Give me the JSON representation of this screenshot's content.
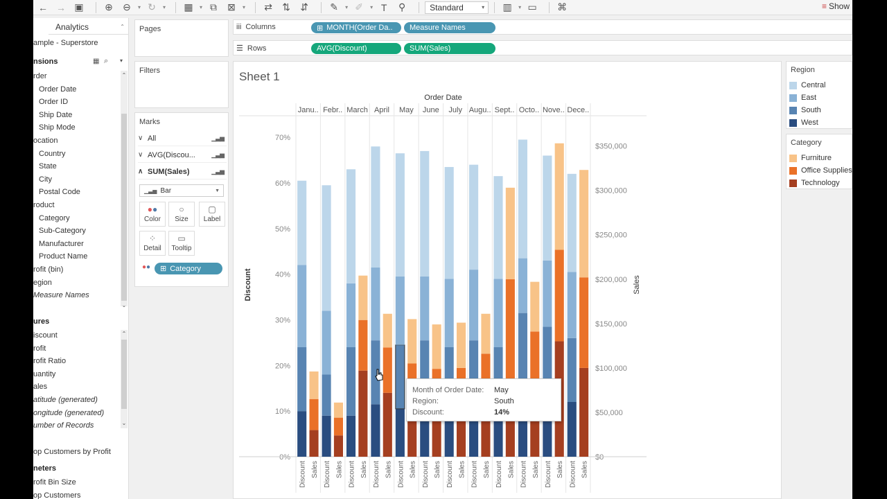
{
  "toolbar": {
    "standard_label": "Standard",
    "show_me_label": "Show"
  },
  "datapane": {
    "analytics_tab": "Analytics",
    "datasource": "ample - Superstore",
    "dimensions_header": "nsions",
    "dimensions": [
      {
        "label": "rder",
        "indent": 0
      },
      {
        "label": "Order Date",
        "indent": 1
      },
      {
        "label": "Order ID",
        "indent": 1
      },
      {
        "label": "Ship Date",
        "indent": 1
      },
      {
        "label": "Ship Mode",
        "indent": 1
      },
      {
        "label": "ocation",
        "indent": 0
      },
      {
        "label": "Country",
        "indent": 1
      },
      {
        "label": "State",
        "indent": 1
      },
      {
        "label": "City",
        "indent": 1
      },
      {
        "label": "Postal Code",
        "indent": 1
      },
      {
        "label": "roduct",
        "indent": 0
      },
      {
        "label": "Category",
        "indent": 1
      },
      {
        "label": "Sub-Category",
        "indent": 1
      },
      {
        "label": "Manufacturer",
        "indent": 1
      },
      {
        "label": "Product Name",
        "indent": 1
      },
      {
        "label": "rofit (bin)",
        "indent": 0
      },
      {
        "label": "egion",
        "indent": 0
      },
      {
        "label": "Measure Names",
        "indent": 0,
        "italic": true
      }
    ],
    "measures_header": "ures",
    "measures": [
      {
        "label": "iscount"
      },
      {
        "label": "rofit"
      },
      {
        "label": "rofit Ratio"
      },
      {
        "label": "uantity"
      },
      {
        "label": "ales"
      },
      {
        "label": "atitude (generated)",
        "italic": true
      },
      {
        "label": "ongitude (generated)",
        "italic": true
      },
      {
        "label": "umber of Records",
        "italic": true
      }
    ],
    "sets": [
      {
        "label": "op Customers by Profit"
      }
    ],
    "parameters_header": "neters",
    "parameters": [
      {
        "label": "rofit Bin Size"
      },
      {
        "label": "op Customers"
      }
    ]
  },
  "cards": {
    "pages_title": "Pages",
    "filters_title": "Filters",
    "marks_title": "Marks",
    "marks_rows": [
      {
        "chev": "∨",
        "label": "All"
      },
      {
        "chev": "∨",
        "label": "AVG(Discou..."
      },
      {
        "chev": "∧",
        "label": "SUM(Sales)"
      }
    ],
    "mark_type": "Bar",
    "buttons": [
      "Color",
      "Size",
      "Label",
      "Detail",
      "Tooltip"
    ],
    "category_pill": "Category"
  },
  "shelves": {
    "columns_label": "Columns",
    "rows_label": "Rows",
    "column_pills": [
      "MONTH(Order Da..",
      "Measure Names"
    ],
    "row_pills": [
      "AVG(Discount)",
      "SUM(Sales)"
    ]
  },
  "view": {
    "sheet_title": "Sheet 1"
  },
  "legends": {
    "region_title": "Region",
    "region_items": [
      {
        "label": "Central",
        "color": "#bcd6ea"
      },
      {
        "label": "East",
        "color": "#8ab2d6"
      },
      {
        "label": "South",
        "color": "#5884b2"
      },
      {
        "label": "West",
        "color": "#2a4d80"
      }
    ],
    "category_title": "Category",
    "category_items": [
      {
        "label": "Furniture",
        "color": "#f8c388"
      },
      {
        "label": "Office Supplies",
        "color": "#ea7128"
      },
      {
        "label": "Technology",
        "color": "#a53f20"
      }
    ]
  },
  "tooltip": {
    "rows": [
      {
        "key": "Month of Order Date:",
        "value": "May",
        "bold": false
      },
      {
        "key": "Region:",
        "value": "South",
        "bold": false
      },
      {
        "key": "Discount:",
        "value": "14%",
        "bold": true
      }
    ]
  },
  "chart_data": {
    "type": "bar",
    "title": "Order Date",
    "xlabel": "Order Date",
    "categories": [
      "Janu..",
      "Febr..",
      "March",
      "April",
      "May",
      "June",
      "July",
      "Augu..",
      "Sept..",
      "Octo..",
      "Nove..",
      "Dece.."
    ],
    "measure_labels": [
      "Discount",
      "Sales"
    ],
    "discount": {
      "ylabel": "Discount",
      "ylim": [
        0,
        72
      ],
      "ticks": [
        "0%",
        "10%",
        "20%",
        "30%",
        "40%",
        "50%",
        "60%",
        "70%"
      ],
      "series": [
        {
          "name": "West",
          "values": [
            10,
            9,
            9,
            11.5,
            10.5,
            10.5,
            10,
            10.5,
            10,
            13,
            11,
            12
          ]
        },
        {
          "name": "South",
          "values": [
            14,
            9,
            15,
            14,
            14,
            15,
            14,
            15,
            14,
            18.5,
            17.5,
            14
          ]
        },
        {
          "name": "East",
          "values": [
            18,
            14,
            14,
            16,
            15,
            14,
            15,
            15.5,
            15,
            12,
            14.5,
            14.5
          ]
        },
        {
          "name": "Central",
          "values": [
            18.5,
            27.5,
            25,
            26.5,
            27,
            27.5,
            24.5,
            23,
            22.5,
            26,
            23,
            21.5
          ]
        }
      ]
    },
    "sales": {
      "ylabel": "Sales",
      "ylim": [
        0,
        370000
      ],
      "ticks": [
        "$0",
        "$50,000",
        "$100,000",
        "$150,000",
        "$200,000",
        "$250,000",
        "$300,000",
        "$350,000"
      ],
      "series": [
        {
          "name": "Technology",
          "values": [
            30000,
            24000,
            97000,
            72000,
            58000,
            59000,
            68000,
            72000,
            50000,
            88000,
            130000,
            100000
          ]
        },
        {
          "name": "Office Supplies",
          "values": [
            35000,
            20000,
            57000,
            51000,
            47000,
            40000,
            32000,
            44000,
            150000,
            53000,
            103000,
            102000
          ]
        },
        {
          "name": "Furniture",
          "values": [
            31000,
            17000,
            50000,
            38000,
            50000,
            50000,
            51000,
            45000,
            103000,
            56000,
            120000,
            121000
          ]
        }
      ]
    }
  }
}
